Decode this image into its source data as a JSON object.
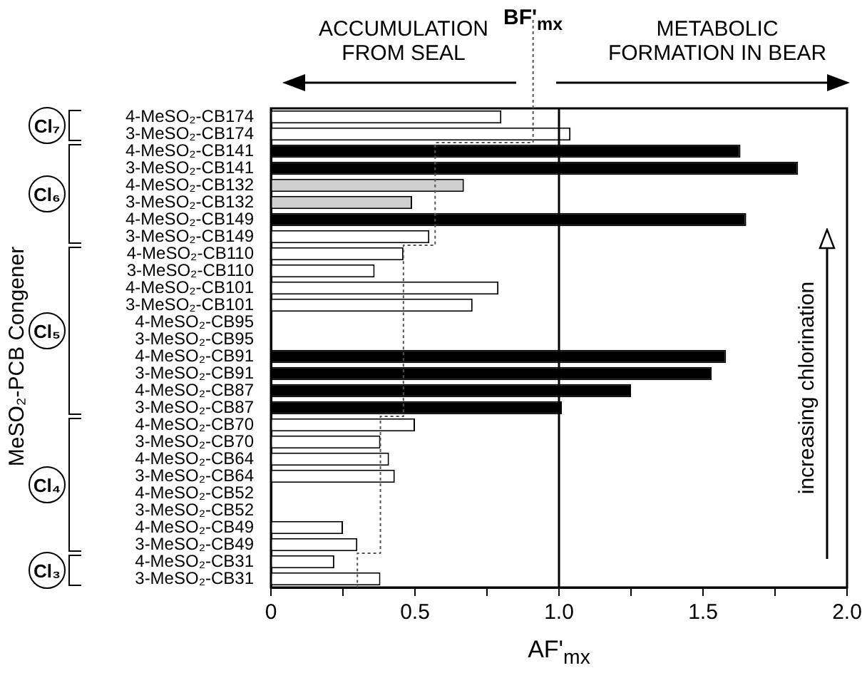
{
  "chart_data": {
    "type": "bar",
    "orientation": "horizontal",
    "xlabel": "AF'$_{mx}$",
    "ylabel": "MeSO₂-PCB Congener",
    "categories": [
      "4-MeSO₂-CB174",
      "3-MeSO₂-CB174",
      "4-MeSO₂-CB141",
      "3-MeSO₂-CB141",
      "4-MeSO₂-CB132",
      "3-MeSO₂-CB132",
      "4-MeSO₂-CB149",
      "3-MeSO₂-CB149",
      "4-MeSO₂-CB110",
      "3-MeSO₂-CB110",
      "4-MeSO₂-CB101",
      "3-MeSO₂-CB101",
      "4-MeSO₂-CB95",
      "3-MeSO₂-CB95",
      "4-MeSO₂-CB91",
      "3-MeSO₂-CB91",
      "4-MeSO₂-CB87",
      "3-MeSO₂-CB87",
      "4-MeSO₂-CB70",
      "3-MeSO₂-CB70",
      "4-MeSO₂-CB64",
      "3-MeSO₂-CB64",
      "4-MeSO₂-CB52",
      "3-MeSO₂-CB52",
      "4-MeSO₂-CB49",
      "3-MeSO₂-CB49",
      "4-MeSO₂-CB31",
      "3-MeSO₂-CB31"
    ],
    "series": [
      {
        "values": [
          0.8,
          1.04,
          1.63,
          1.83,
          0.67,
          0.49,
          1.65,
          0.55,
          0.46,
          0.36,
          0.79,
          0.7,
          null,
          null,
          1.58,
          1.53,
          1.25,
          1.01,
          0.5,
          0.38,
          0.41,
          0.43,
          null,
          null,
          0.25,
          0.3,
          0.22,
          0.38
        ],
        "colors": [
          "#ffffff",
          "#ffffff",
          "#000000",
          "#000000",
          "#d0d0d0",
          "#d0d0d0",
          "#000000",
          "#ffffff",
          "#ffffff",
          "#ffffff",
          "#ffffff",
          "#ffffff",
          "#ffffff",
          "#ffffff",
          "#000000",
          "#000000",
          "#000000",
          "#000000",
          "#ffffff",
          "#ffffff",
          "#ffffff",
          "#ffffff",
          "#ffffff",
          "#ffffff",
          "#ffffff",
          "#ffffff",
          "#ffffff",
          "#ffffff"
        ]
      },
      {
        "type": "step",
        "name": "BF'$_{mx}$",
        "color": "#555555",
        "line_style": "dotted",
        "values": [
          0.91,
          0.91,
          0.57,
          0.57,
          0.57,
          0.57,
          0.57,
          0.57,
          0.46,
          0.46,
          0.46,
          0.46,
          0.46,
          0.46,
          0.46,
          0.46,
          0.46,
          0.46,
          0.38,
          0.38,
          0.38,
          0.38,
          0.38,
          0.38,
          0.38,
          0.38,
          0.3,
          0.3
        ]
      }
    ],
    "xlim": [
      0,
      2
    ],
    "xticks": [
      0,
      {
        "value": 0.25,
        "label": null
      },
      0.5,
      {
        "value": 0.75,
        "label": null
      },
      {
        "value": 1,
        "label": "1.0"
      },
      {
        "value": 1.25,
        "label": null
      },
      1.5,
      {
        "value": 1.75,
        "label": null
      },
      {
        "value": 2,
        "label": "2.0"
      }
    ],
    "ref_lines": [
      {
        "axis": "x",
        "value": 1,
        "color": "#000000"
      }
    ],
    "legend": false,
    "annotations": [
      "ACCUMULATION FROM SEAL",
      "METABOLIC FORMATION IN BEAR",
      "increasing chlorination",
      "Cl₇",
      "Cl₆",
      "Cl₅",
      "Cl₄",
      "Cl₃"
    ]
  }
}
